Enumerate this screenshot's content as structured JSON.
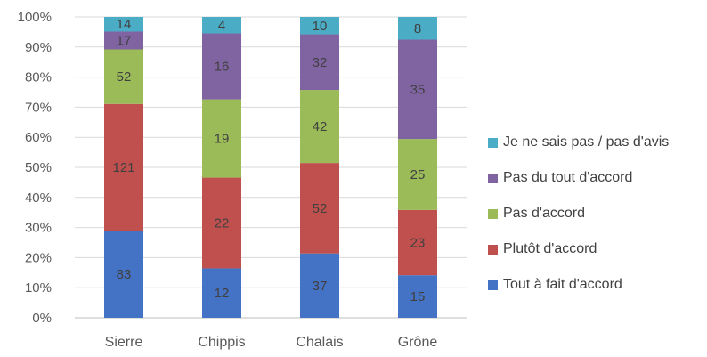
{
  "chart_data": {
    "type": "bar",
    "stacked": "percent",
    "title": "",
    "xlabel": "",
    "ylabel": "",
    "categories": [
      "Sierre",
      "Chippis",
      "Chalais",
      "Grône"
    ],
    "ylim": [
      0,
      100
    ],
    "yticks": [
      "0%",
      "10%",
      "20%",
      "30%",
      "40%",
      "50%",
      "60%",
      "70%",
      "80%",
      "90%",
      "100%"
    ],
    "grid": true,
    "legend_position": "right",
    "series": [
      {
        "name": "Tout à fait d'accord",
        "color": "#4472C4",
        "values": [
          83,
          12,
          37,
          15
        ]
      },
      {
        "name": "Plutôt d'accord",
        "color": "#C0504D",
        "values": [
          121,
          22,
          52,
          23
        ]
      },
      {
        "name": "Pas d'accord",
        "color": "#9BBB59",
        "values": [
          52,
          19,
          42,
          25
        ]
      },
      {
        "name": "Pas du tout d'accord",
        "color": "#8064A2",
        "values": [
          17,
          16,
          32,
          35
        ]
      },
      {
        "name": "Je ne sais pas / pas d'avis",
        "color": "#4BACC6",
        "values": [
          14,
          4,
          10,
          8
        ]
      }
    ]
  }
}
